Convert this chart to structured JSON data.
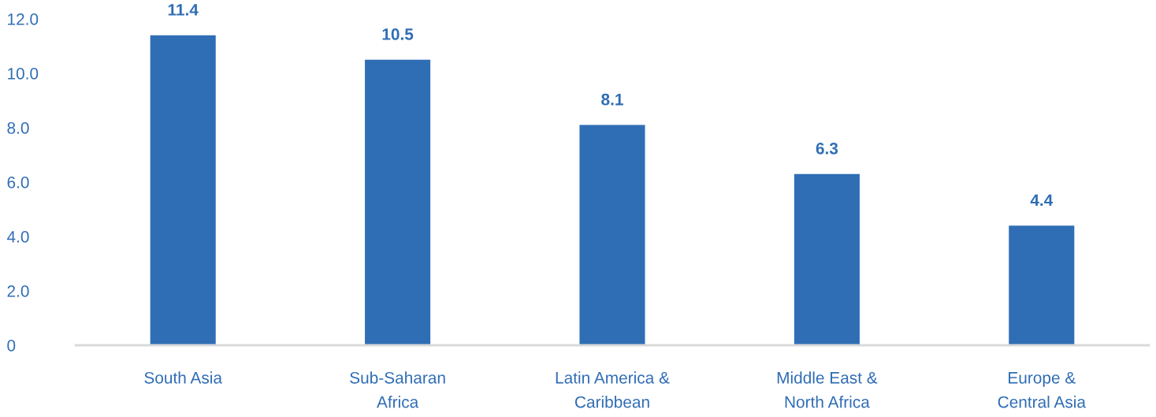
{
  "chart_data": {
    "type": "bar",
    "categories": [
      "South Asia",
      "Sub-Saharan\nAfrica",
      "Latin America &\nCaribbean",
      "Middle East &\nNorth Africa",
      "Europe &\nCentral Asia"
    ],
    "values": [
      11.4,
      10.5,
      8.1,
      6.3,
      4.4
    ],
    "color": "#2f6eb5",
    "ylim": [
      0,
      12
    ],
    "yticks": [
      0,
      {
        "value": 2,
        "label": "2.0"
      },
      {
        "value": 4,
        "label": "4.0"
      },
      {
        "value": 6,
        "label": "6.0"
      },
      {
        "value": 8,
        "label": "8.0"
      },
      {
        "value": 10,
        "label": "10.0"
      },
      {
        "value": 12,
        "label": "12.0"
      }
    ],
    "grid": false,
    "data_labels": true
  }
}
